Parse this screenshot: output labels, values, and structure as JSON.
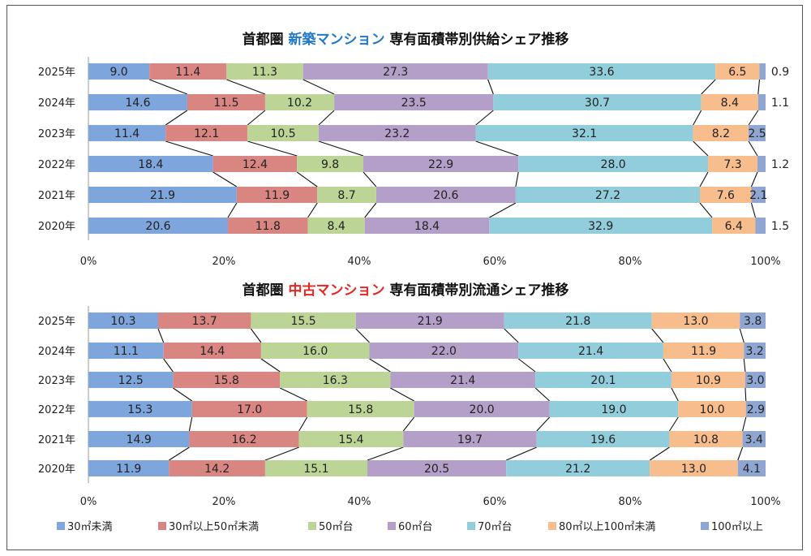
{
  "colors": [
    "#7ea6dc",
    "#d98683",
    "#bdd497",
    "#b39fc8",
    "#92cddb",
    "#f8bd8c",
    "#8ea6d1"
  ],
  "legend": [
    "30㎡未満",
    "30㎡以上50㎡未満",
    "50㎡台",
    "60㎡台",
    "70㎡台",
    "80㎡以上100㎡未満",
    "100㎡以上"
  ],
  "chart_data": [
    {
      "type": "bar",
      "orientation": "horizontal-stacked-100",
      "title_prefix": "首都圏",
      "title_highlight": "新築マンション",
      "title_highlight_color": "#1f78c8",
      "title_suffix": "専有面積帯別供給シェア推移",
      "categories": [
        "2025年",
        "2024年",
        "2023年",
        "2022年",
        "2021年",
        "2020年"
      ],
      "series": [
        {
          "name": "30㎡未満",
          "values": [
            9.0,
            14.6,
            11.4,
            18.4,
            21.9,
            20.6
          ]
        },
        {
          "name": "30㎡以上50㎡未満",
          "values": [
            11.4,
            11.5,
            12.1,
            12.4,
            11.9,
            11.8
          ]
        },
        {
          "name": "50㎡台",
          "values": [
            11.3,
            10.2,
            10.5,
            9.8,
            8.7,
            8.4
          ]
        },
        {
          "name": "60㎡台",
          "values": [
            27.3,
            23.5,
            23.2,
            22.9,
            20.6,
            18.4
          ]
        },
        {
          "name": "70㎡台",
          "values": [
            33.6,
            30.7,
            32.1,
            28.0,
            27.2,
            32.9
          ]
        },
        {
          "name": "80㎡以上100㎡未満",
          "values": [
            6.5,
            8.4,
            8.2,
            7.3,
            7.6,
            6.4
          ]
        },
        {
          "name": "100㎡以上",
          "values": [
            0.9,
            1.1,
            2.5,
            1.2,
            2.1,
            1.5
          ]
        }
      ],
      "xlim": [
        0,
        100
      ],
      "xticks": [
        "0%",
        "20%",
        "40%",
        "60%",
        "80%",
        "100%"
      ]
    },
    {
      "type": "bar",
      "orientation": "horizontal-stacked-100",
      "title_prefix": "首都圏",
      "title_highlight": "中古マンション",
      "title_highlight_color": "#e8251f",
      "title_suffix": "専有面積帯別流通シェア推移",
      "categories": [
        "2025年",
        "2024年",
        "2023年",
        "2022年",
        "2021年",
        "2020年"
      ],
      "series": [
        {
          "name": "30㎡未満",
          "values": [
            10.3,
            11.1,
            12.5,
            15.3,
            14.9,
            11.9
          ]
        },
        {
          "name": "30㎡以上50㎡未満",
          "values": [
            13.7,
            14.4,
            15.8,
            17.0,
            16.2,
            14.2
          ]
        },
        {
          "name": "50㎡台",
          "values": [
            15.5,
            16.0,
            16.3,
            15.8,
            15.4,
            15.1
          ]
        },
        {
          "name": "60㎡台",
          "values": [
            21.9,
            22.0,
            21.4,
            20.0,
            19.7,
            20.5
          ]
        },
        {
          "name": "70㎡台",
          "values": [
            21.8,
            21.4,
            20.1,
            19.0,
            19.6,
            21.2
          ]
        },
        {
          "name": "80㎡以上100㎡未満",
          "values": [
            13.0,
            11.9,
            10.9,
            10.0,
            10.8,
            13.0
          ]
        },
        {
          "name": "100㎡以上",
          "values": [
            3.8,
            3.2,
            3.0,
            2.9,
            3.4,
            4.1
          ]
        }
      ],
      "xlim": [
        0,
        100
      ],
      "xticks": [
        "0%",
        "20%",
        "40%",
        "60%",
        "80%",
        "100%"
      ]
    }
  ]
}
